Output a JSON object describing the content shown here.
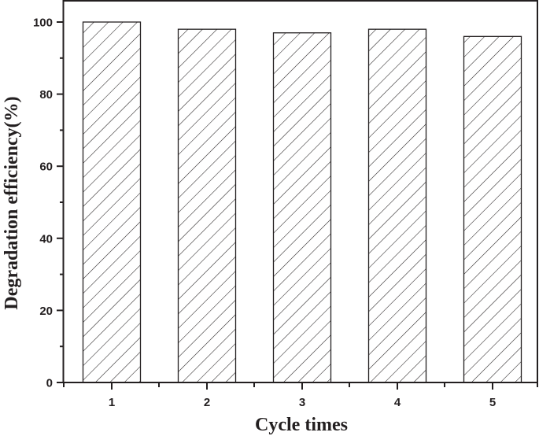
{
  "chart_data": {
    "type": "bar",
    "title": "",
    "xlabel": "Cycle times",
    "ylabel": "Degradation efficiency(%)",
    "categories": [
      "1",
      "2",
      "3",
      "4",
      "5"
    ],
    "values": [
      100,
      98,
      97,
      98,
      96
    ],
    "ylim": [
      0,
      105
    ],
    "yticks": [
      0,
      20,
      40,
      60,
      80,
      100
    ],
    "ytick_labels": [
      "0",
      "20",
      "40",
      "60",
      "80",
      "100"
    ],
    "grid": false,
    "legend": null,
    "bar_style": {
      "fill": "#ffffff",
      "hatch": "diagonal",
      "stroke": "#231f20"
    }
  },
  "colors": {
    "axis": "#231f20",
    "bar_edge": "#231f20",
    "hatch": "#231f20",
    "background": "#ffffff"
  }
}
